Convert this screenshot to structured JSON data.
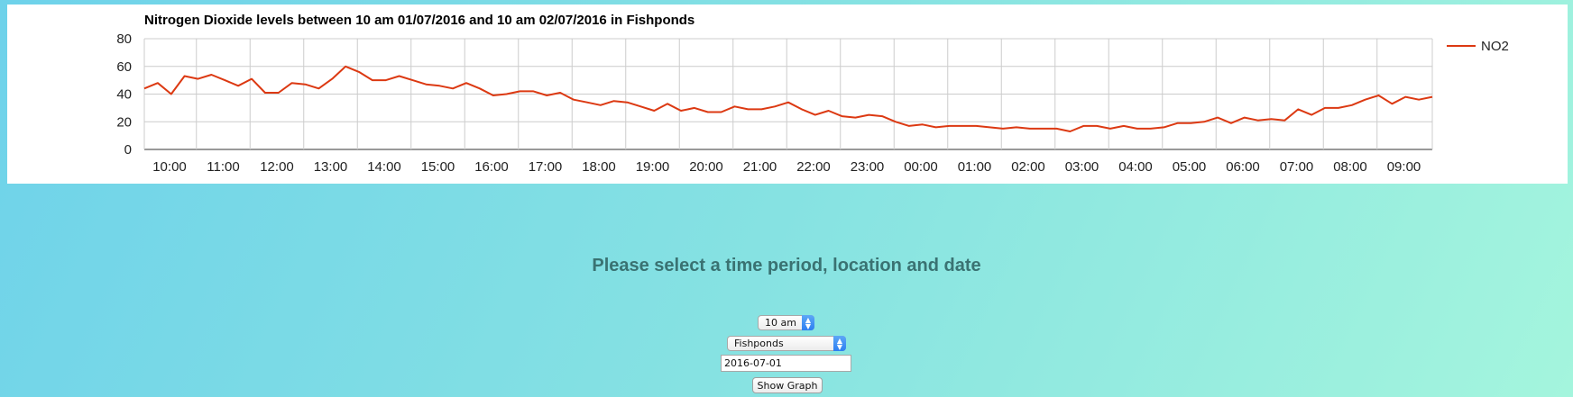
{
  "prompt_text": "Please select a time period, location and date",
  "controls": {
    "time_period": "10 am",
    "location": "Fishponds",
    "date": "2016-07-01",
    "submit_label": "Show Graph"
  },
  "colors": {
    "series": "#dc3912",
    "grid": "#cccccc",
    "prompt": "#3a7272",
    "select_arrow": "#2d7ff2"
  },
  "chart_data": {
    "type": "line",
    "title": "Nitrogen Dioxide levels between 10 am 01/07/2016 and 10 am 02/07/2016 in Fishponds",
    "xlabel": "",
    "ylabel": "",
    "ylim": [
      0,
      80
    ],
    "yticks": [
      "80",
      "60",
      "40",
      "20",
      "0"
    ],
    "xticks": [
      "10:00",
      "11:00",
      "12:00",
      "13:00",
      "14:00",
      "15:00",
      "16:00",
      "17:00",
      "18:00",
      "19:00",
      "20:00",
      "21:00",
      "22:00",
      "23:00",
      "00:00",
      "01:00",
      "02:00",
      "03:00",
      "04:00",
      "05:00",
      "06:00",
      "07:00",
      "08:00",
      "09:00"
    ],
    "grid": true,
    "legend_position": "top-right",
    "series": [
      {
        "name": "NO2",
        "interval_minutes": 15,
        "values": [
          44,
          48,
          40,
          53,
          51,
          54,
          50,
          46,
          51,
          41,
          41,
          48,
          47,
          44,
          51,
          60,
          56,
          50,
          50,
          53,
          50,
          47,
          46,
          44,
          48,
          44,
          39,
          40,
          42,
          42,
          39,
          41,
          36,
          34,
          32,
          35,
          34,
          31,
          28,
          33,
          28,
          30,
          27,
          27,
          31,
          29,
          29,
          31,
          34,
          29,
          25,
          28,
          24,
          23,
          25,
          24,
          20,
          17,
          18,
          16,
          17,
          17,
          17,
          16,
          15,
          16,
          15,
          15,
          15,
          13,
          17,
          17,
          15,
          17,
          15,
          15,
          16,
          19,
          19,
          20,
          23,
          19,
          23,
          21,
          22,
          21,
          29,
          25,
          30,
          30,
          32,
          36,
          39,
          33,
          38,
          36,
          38
        ]
      }
    ]
  }
}
